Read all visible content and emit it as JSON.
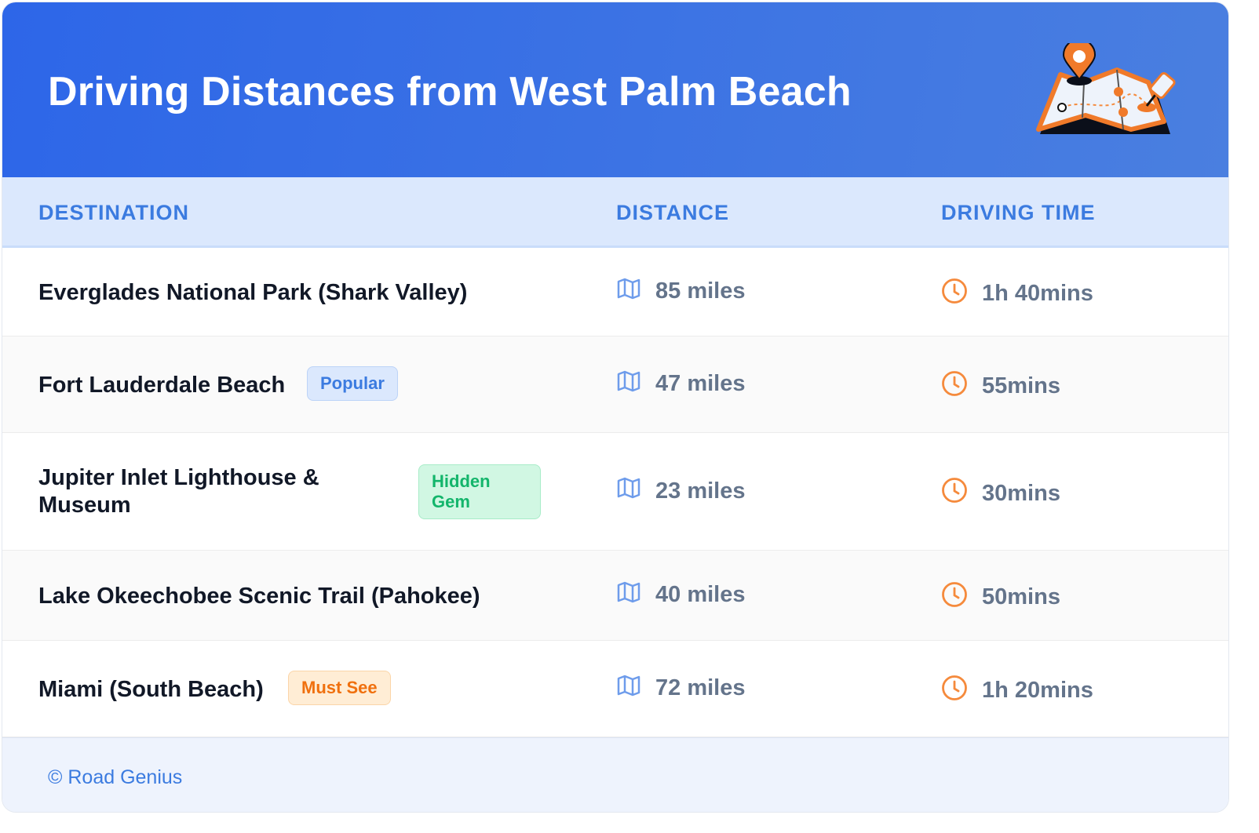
{
  "title": "Driving Distances from West Palm Beach",
  "columns": [
    "DESTINATION",
    "DISTANCE",
    "DRIVING TIME"
  ],
  "rows": [
    {
      "destination": "Everglades National Park (Shark Valley)",
      "badge": "",
      "distance": "85 miles",
      "time": "1h 40mins"
    },
    {
      "destination": "Fort Lauderdale Beach",
      "badge": "Popular",
      "distance": "47 miles",
      "time": "55mins"
    },
    {
      "destination": "Jupiter Inlet Lighthouse & Museum",
      "badge": "Hidden Gem",
      "distance": "23 miles",
      "time": "30mins"
    },
    {
      "destination": "Lake Okeechobee Scenic Trail (Pahokee)",
      "badge": "",
      "distance": "40 miles",
      "time": "50mins"
    },
    {
      "destination": "Miami (South Beach)",
      "badge": "Must See",
      "distance": "72 miles",
      "time": "1h 20mins"
    }
  ],
  "icons": {
    "distance": "map-icon",
    "time": "clock-icon",
    "logo": "folded-map-with-pins-icon"
  },
  "colors": {
    "accent": "#3b7be0",
    "orange": "#f58a3c"
  },
  "footer": "© Road Genius"
}
